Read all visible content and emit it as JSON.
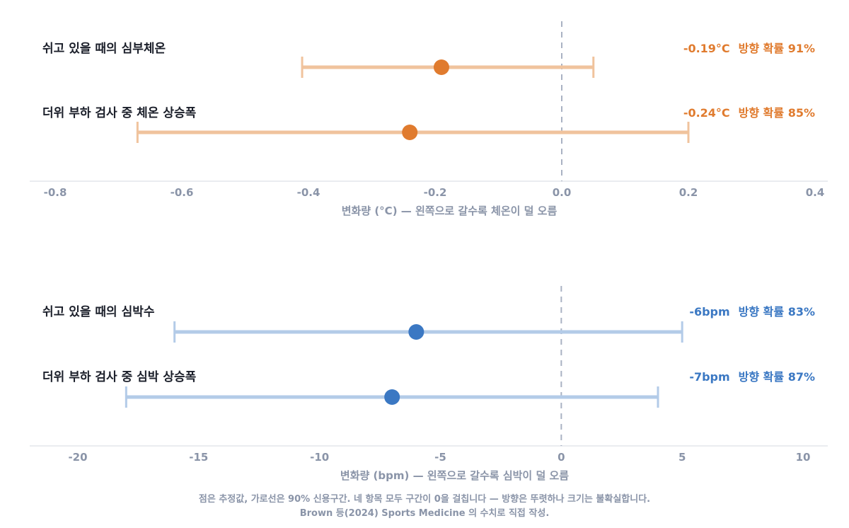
{
  "chart_data": [
    {
      "type": "forest",
      "xlabel": "변화량 (°C) — 왼쪽으로 갈수록 체온이 덜 오름",
      "xlim": [
        -0.8,
        0.4
      ],
      "xticks": [
        "-0.8",
        "-0.6",
        "-0.4",
        "-0.2",
        "0.0",
        "0.2",
        "0.4"
      ],
      "reference_line": 0,
      "color": "#e07b2e",
      "color_light": "#f0c39d",
      "rows": [
        {
          "label": "쉬고 있을 때의 심부체온",
          "estimate": -0.19,
          "lower": -0.41,
          "upper": 0.05,
          "value_text": "-0.19°C",
          "prob_text": "방향 확률 91%"
        },
        {
          "label": "더위 부하 검사 중 체온 상승폭",
          "estimate": -0.24,
          "lower": -0.67,
          "upper": 0.2,
          "value_text": "-0.24°C",
          "prob_text": "방향 확률 85%"
        }
      ]
    },
    {
      "type": "forest",
      "xlabel": "변화량 (bpm) — 왼쪽으로 갈수록 심박이 덜 오름",
      "xlim": [
        -20,
        10
      ],
      "xticks": [
        "-20",
        "-15",
        "-10",
        "-5",
        "0",
        "5",
        "10"
      ],
      "reference_line": 0,
      "color": "#3b78c3",
      "color_light": "#b3cbe8",
      "rows": [
        {
          "label": "쉬고 있을 때의 심박수",
          "estimate": -6,
          "lower": -16,
          "upper": 5,
          "value_text": "-6bpm",
          "prob_text": "방향 확률 83%"
        },
        {
          "label": "더위 부하 검사 중 심박 상승폭",
          "estimate": -7,
          "lower": -18,
          "upper": 4,
          "value_text": "-7bpm",
          "prob_text": "방향 확률 87%"
        }
      ]
    }
  ],
  "footnote": {
    "line1": "점은 추정값, 가로선은 90% 신용구간. 네 항목 모두 구간이 0을 걸칩니다 — 방향은 뚜렷하나 크기는 불확실합니다.",
    "line2": "Brown 등(2024) Sports Medicine 의 수치로 직접 작성."
  }
}
